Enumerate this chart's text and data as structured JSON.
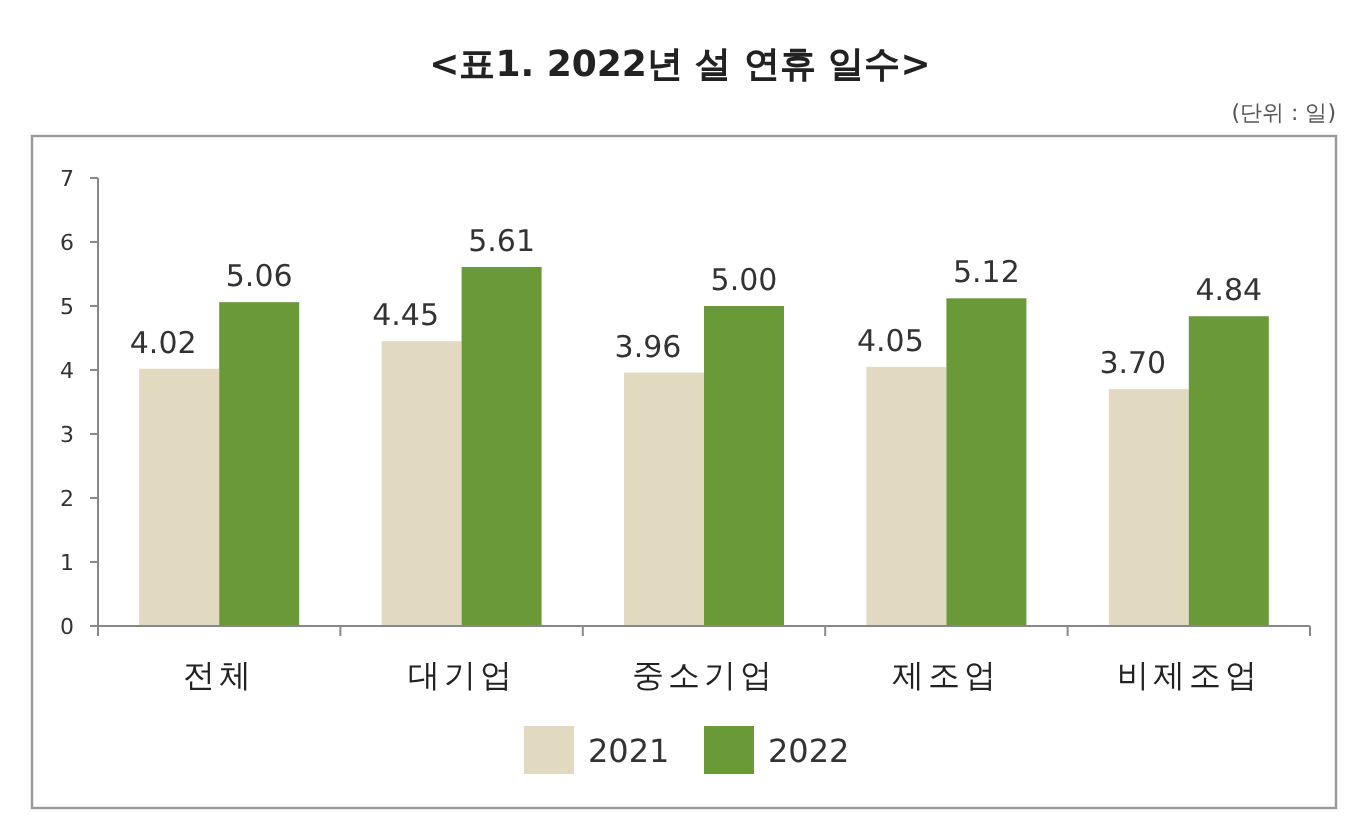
{
  "chart_data": {
    "type": "bar",
    "title": "<표1. 2022년 설 연휴 일수>",
    "annotations": [
      "(단위 : 일)"
    ],
    "categories": [
      "전체",
      "대기업",
      "중소기업",
      "제조업",
      "비제조업"
    ],
    "series": [
      {
        "name": "2021",
        "color": "#e1dac0",
        "values": [
          4.02,
          4.45,
          3.96,
          4.05,
          3.7
        ],
        "value_labels": [
          "4.02",
          "4.45",
          "3.96",
          "4.05",
          "3.70"
        ]
      },
      {
        "name": "2022",
        "color": "#699a37",
        "values": [
          5.06,
          5.61,
          5.0,
          5.12,
          4.84
        ],
        "value_labels": [
          "5.06",
          "5.61",
          "5.00",
          "5.12",
          "4.84"
        ]
      }
    ],
    "ylim": [
      0,
      7
    ],
    "yticks": [
      0,
      1,
      2,
      3,
      4,
      5,
      6,
      7
    ],
    "grid": false,
    "legend": "bottom"
  }
}
